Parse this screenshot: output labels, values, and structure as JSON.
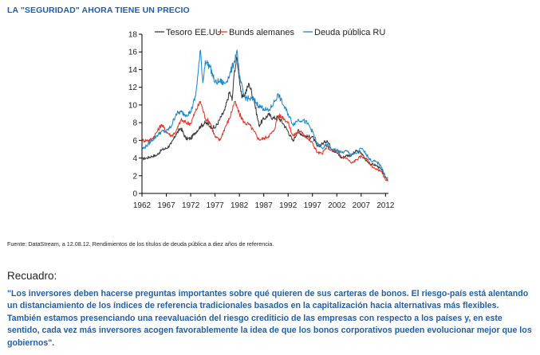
{
  "header": {
    "title": "LA \"SEGURIDAD\" AHORA TIENE UN PRECIO"
  },
  "chart_data": {
    "type": "line",
    "x_ticks": [
      "1962",
      "1967",
      "1972",
      "1977",
      "1982",
      "1987",
      "1992",
      "1997",
      "2002",
      "2007",
      "2012"
    ],
    "xlim": [
      1962,
      2012.6
    ],
    "ylim": [
      0,
      18
    ],
    "y_ticks": [
      "0",
      "2",
      "4",
      "6",
      "8",
      "10",
      "12",
      "14",
      "16",
      "18"
    ],
    "grid": false,
    "legend_position": "top",
    "series": [
      {
        "name": "Tesoro EE.UU.",
        "color": "#3a3a3a",
        "x": [
          1962,
          1963,
          1964,
          1965,
          1966,
          1967,
          1968,
          1969,
          1970,
          1971,
          1972,
          1973,
          1974,
          1975,
          1976,
          1977,
          1978,
          1979,
          1980,
          1980.5,
          1981,
          1981.5,
          1982,
          1982.5,
          1983,
          1984,
          1985,
          1986,
          1987,
          1988,
          1989,
          1990,
          1991,
          1992,
          1993,
          1994,
          1995,
          1996,
          1997,
          1998,
          1999,
          2000,
          2001,
          2002,
          2003,
          2004,
          2005,
          2006,
          2007,
          2008,
          2009,
          2010,
          2011,
          2012,
          2012.5
        ],
        "y": [
          3.9,
          4.0,
          4.2,
          4.3,
          4.9,
          5.1,
          5.6,
          6.7,
          7.4,
          6.2,
          6.2,
          6.9,
          7.6,
          8.0,
          7.6,
          7.4,
          8.4,
          9.4,
          11.5,
          10.5,
          13.9,
          15.3,
          13.0,
          10.8,
          11.1,
          12.4,
          10.6,
          7.7,
          8.4,
          8.9,
          8.5,
          8.6,
          7.9,
          7.0,
          5.9,
          7.1,
          6.6,
          6.4,
          6.4,
          5.3,
          5.6,
          6.0,
          5.0,
          4.6,
          4.0,
          4.3,
          4.3,
          4.8,
          4.6,
          3.7,
          3.3,
          3.2,
          2.8,
          1.8,
          1.6
        ]
      },
      {
        "name": "Bunds alemanes",
        "color": "#e03a2a",
        "x": [
          1962,
          1963,
          1964,
          1965,
          1966,
          1967,
          1968,
          1969,
          1970,
          1971,
          1972,
          1973,
          1974,
          1975,
          1976,
          1977,
          1978,
          1979,
          1980,
          1981,
          1982,
          1983,
          1984,
          1985,
          1986,
          1987,
          1988,
          1989,
          1990,
          1991,
          1992,
          1993,
          1994,
          1995,
          1996,
          1997,
          1998,
          1999,
          2000,
          2001,
          2002,
          2003,
          2004,
          2005,
          2006,
          2007,
          2008,
          2009,
          2010,
          2011,
          2012,
          2012.5
        ],
        "y": [
          6.0,
          6.0,
          6.1,
          6.9,
          7.8,
          7.0,
          6.5,
          7.0,
          8.3,
          8.0,
          7.9,
          9.3,
          10.4,
          8.5,
          8.0,
          6.4,
          6.0,
          7.4,
          8.5,
          10.4,
          9.0,
          8.0,
          7.8,
          7.0,
          6.1,
          6.2,
          6.5,
          7.0,
          8.8,
          8.6,
          8.0,
          6.5,
          6.9,
          6.9,
          6.2,
          5.7,
          4.6,
          4.5,
          5.3,
          4.8,
          4.8,
          4.1,
          4.0,
          3.4,
          3.8,
          4.2,
          4.0,
          3.2,
          2.7,
          2.6,
          1.5,
          1.4
        ]
      },
      {
        "name": "Deuda pública RU",
        "color": "#1f88c8",
        "x": [
          1962,
          1963,
          1964,
          1965,
          1966,
          1967,
          1968,
          1969,
          1970,
          1971,
          1972,
          1973,
          1973.5,
          1974,
          1974.5,
          1975,
          1976,
          1977,
          1978,
          1979,
          1980,
          1981,
          1981.5,
          1982,
          1983,
          1984,
          1985,
          1986,
          1987,
          1988,
          1989,
          1990,
          1991,
          1992,
          1993,
          1994,
          1995,
          1996,
          1997,
          1998,
          1999,
          2000,
          2001,
          2002,
          2003,
          2004,
          2005,
          2006,
          2007,
          2008,
          2009,
          2010,
          2011,
          2012,
          2012.5
        ],
        "y": [
          5.0,
          5.4,
          6.0,
          6.5,
          7.0,
          7.0,
          7.6,
          9.0,
          9.2,
          8.9,
          9.2,
          11.0,
          13.5,
          16.2,
          12.5,
          15.0,
          14.3,
          12.5,
          12.7,
          12.4,
          13.4,
          15.0,
          16.2,
          13.2,
          10.9,
          10.7,
          10.6,
          9.9,
          9.6,
          9.3,
          10.2,
          11.2,
          10.0,
          9.0,
          7.8,
          8.3,
          8.3,
          7.9,
          7.0,
          5.6,
          5.1,
          5.5,
          5.0,
          4.9,
          4.6,
          4.8,
          4.4,
          4.5,
          5.1,
          4.5,
          3.7,
          3.6,
          3.2,
          1.9,
          1.7
        ]
      }
    ]
  },
  "footer": {
    "source": "Fuente: DataStream, a 12.08.12. Rendimientos de los títulos de deuda pública a diez años de referencia.",
    "recuadro_label": "Recuadro:",
    "quote": "\"Los inversores deben hacerse preguntas importantes sobre qué quieren de sus carteras de bonos. El riesgo-país está alentando un distanciamiento de los índices de referencia tradicionales basados en la capitalización hacia alternativas más flexibles. También estamos presenciando una reevaluación del riesgo crediticio de las empresas con respecto a los países y, en este sentido, cada vez más inversores acogen favorablemente la idea de que los bonos corporativos pueden evolucionar mejor que los gobiernos\"."
  }
}
